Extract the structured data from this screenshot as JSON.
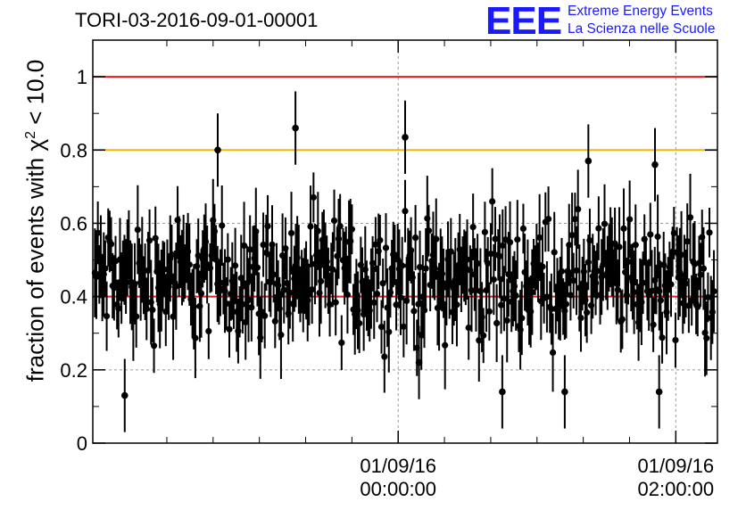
{
  "header": {
    "run_title": "TORI-03-2016-09-01-00001",
    "logo_mark": "EEE",
    "logo_line1": "Extreme Energy Events",
    "logo_line2": "La Scienza nelle Scuole"
  },
  "chart_data": {
    "type": "scatter",
    "title": "TORI-03-2016-09-01-00001",
    "ylabel_text": "fraction of events with χ",
    "ylabel_sup": "2",
    "ylabel_tail": " < 10.0",
    "xlabel": "",
    "ylim": [
      0,
      1.1
    ],
    "xlim_hours": [
      -2.2,
      2.3
    ],
    "error_bars": true,
    "grid": true,
    "x_ticks": [
      {
        "hour": 0,
        "date": "01/09/16",
        "time": "00:00:00"
      },
      {
        "hour": 2,
        "date": "01/09/16",
        "time": "02:00:00"
      }
    ],
    "y_ticks": [
      {
        "value": 0,
        "label": "0"
      },
      {
        "value": 0.2,
        "label": "0.2"
      },
      {
        "value": 0.4,
        "label": "0.4"
      },
      {
        "value": 0.6,
        "label": "0.6"
      },
      {
        "value": 0.8,
        "label": "0.8"
      },
      {
        "value": 1,
        "label": "1"
      }
    ],
    "reference_lines": [
      {
        "y": 1.0,
        "color": "#e41a1c"
      },
      {
        "y": 0.8,
        "color": "#f5b800"
      },
      {
        "y": 0.4,
        "color": "#e41a1c"
      }
    ],
    "notable_points": [
      {
        "x_hour": -0.74,
        "y": 0.86
      },
      {
        "x_hour": 0.05,
        "y": 0.835
      },
      {
        "x_hour": -1.3,
        "y": 0.8
      },
      {
        "x_hour": 1.37,
        "y": 0.77
      },
      {
        "x_hour": 1.85,
        "y": 0.76
      },
      {
        "x_hour": -1.97,
        "y": 0.13
      },
      {
        "x_hour": 0.15,
        "y": 0.22
      },
      {
        "x_hour": 1.2,
        "y": 0.14
      },
      {
        "x_hour": 0.75,
        "y": 0.14
      },
      {
        "x_hour": 1.88,
        "y": 0.14
      }
    ],
    "series_summary": {
      "count": 420,
      "mean": 0.45,
      "spread": 0.1,
      "typical_error": 0.09
    }
  }
}
